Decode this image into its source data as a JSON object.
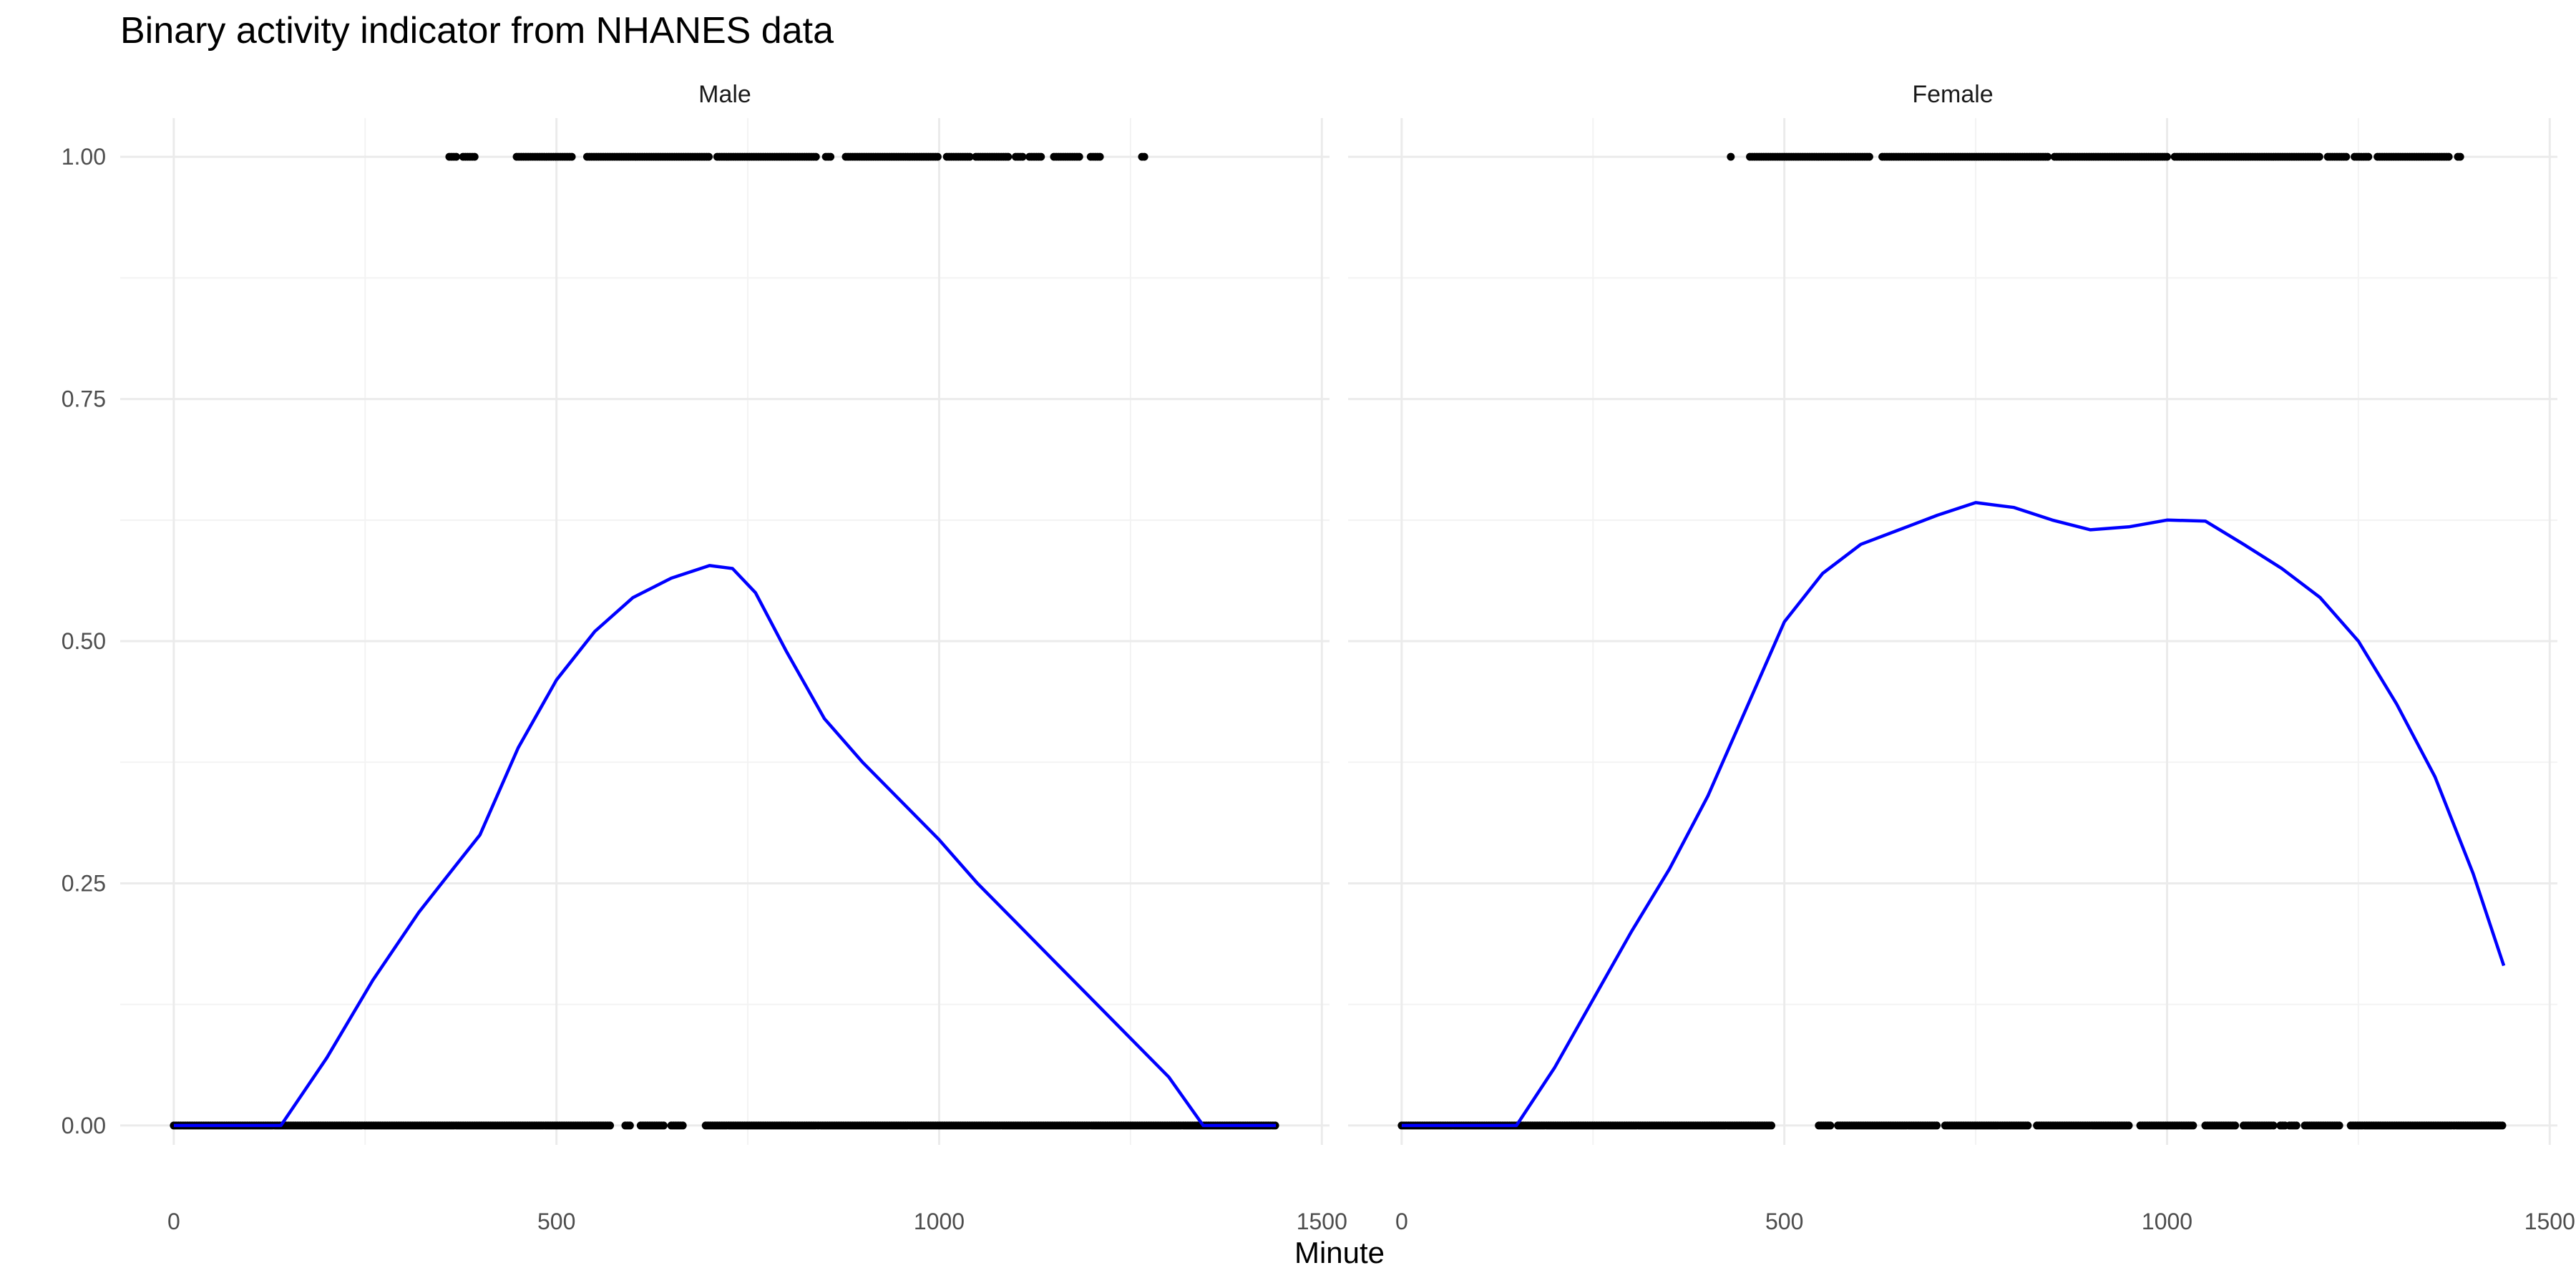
{
  "chart_data": {
    "type": "scatter",
    "title": "Binary activity indicator from NHANES data",
    "xlabel": "Minute",
    "ylabel": "",
    "xlim": [
      -70,
      1510
    ],
    "ylim": [
      -0.02,
      1.04
    ],
    "x_ticks": [
      0,
      500,
      1000,
      1500
    ],
    "x_tick_labels": [
      "0",
      "500",
      "1000",
      "1500"
    ],
    "y_ticks": [
      0,
      0.25,
      0.5,
      0.75,
      1
    ],
    "y_tick_labels": [
      "0.00",
      "0.25",
      "0.50",
      "0.75",
      "1.00"
    ],
    "grid": true,
    "line_color": "#0000ff",
    "point_color": "#000000",
    "panels": [
      {
        "name": "Male",
        "ones_segments": [
          [
            360,
            370
          ],
          [
            378,
            395
          ],
          [
            448,
            520
          ],
          [
            540,
            700
          ],
          [
            710,
            840
          ],
          [
            852,
            860
          ],
          [
            878,
            1000
          ],
          [
            1010,
            1040
          ],
          [
            1048,
            1090
          ],
          [
            1100,
            1110
          ],
          [
            1118,
            1135
          ],
          [
            1150,
            1185
          ],
          [
            1198,
            1210
          ],
          [
            1265,
            1268
          ]
        ],
        "zeros_segments": [
          [
            0,
            570
          ],
          [
            590,
            598
          ],
          [
            610,
            640
          ],
          [
            650,
            665
          ],
          [
            695,
            1440
          ]
        ],
        "smooth": [
          [
            0,
            0
          ],
          [
            140,
            0
          ],
          [
            200,
            0.07
          ],
          [
            260,
            0.15
          ],
          [
            320,
            0.22
          ],
          [
            360,
            0.26
          ],
          [
            400,
            0.3
          ],
          [
            450,
            0.39
          ],
          [
            500,
            0.46
          ],
          [
            550,
            0.51
          ],
          [
            600,
            0.545
          ],
          [
            650,
            0.565
          ],
          [
            700,
            0.578
          ],
          [
            730,
            0.575
          ],
          [
            760,
            0.55
          ],
          [
            800,
            0.49
          ],
          [
            850,
            0.42
          ],
          [
            900,
            0.375
          ],
          [
            950,
            0.335
          ],
          [
            1000,
            0.295
          ],
          [
            1050,
            0.25
          ],
          [
            1100,
            0.21
          ],
          [
            1150,
            0.17
          ],
          [
            1200,
            0.13
          ],
          [
            1250,
            0.09
          ],
          [
            1300,
            0.05
          ],
          [
            1345,
            0
          ],
          [
            1440,
            0
          ]
        ]
      },
      {
        "name": "Female",
        "ones_segments": [
          [
            430,
            432
          ],
          [
            455,
            612
          ],
          [
            628,
            845
          ],
          [
            853,
            1000
          ],
          [
            1010,
            1200
          ],
          [
            1210,
            1235
          ],
          [
            1245,
            1265
          ],
          [
            1275,
            1370
          ],
          [
            1380,
            1383
          ]
        ],
        "zeros_segments": [
          [
            0,
            485
          ],
          [
            545,
            560
          ],
          [
            570,
            700
          ],
          [
            710,
            820
          ],
          [
            830,
            950
          ],
          [
            965,
            1035
          ],
          [
            1050,
            1090
          ],
          [
            1100,
            1140
          ],
          [
            1148,
            1155
          ],
          [
            1160,
            1170
          ],
          [
            1180,
            1225
          ],
          [
            1240,
            1440
          ]
        ],
        "smooth": [
          [
            0,
            0
          ],
          [
            150,
            0
          ],
          [
            200,
            0.06
          ],
          [
            250,
            0.13
          ],
          [
            300,
            0.2
          ],
          [
            350,
            0.265
          ],
          [
            400,
            0.34
          ],
          [
            450,
            0.43
          ],
          [
            500,
            0.52
          ],
          [
            550,
            0.57
          ],
          [
            600,
            0.6
          ],
          [
            650,
            0.615
          ],
          [
            700,
            0.63
          ],
          [
            750,
            0.643
          ],
          [
            800,
            0.638
          ],
          [
            850,
            0.625
          ],
          [
            900,
            0.615
          ],
          [
            950,
            0.618
          ],
          [
            1000,
            0.625
          ],
          [
            1050,
            0.624
          ],
          [
            1100,
            0.6
          ],
          [
            1150,
            0.575
          ],
          [
            1200,
            0.545
          ],
          [
            1250,
            0.5
          ],
          [
            1300,
            0.435
          ],
          [
            1350,
            0.36
          ],
          [
            1400,
            0.26
          ],
          [
            1440,
            0.165
          ]
        ]
      }
    ]
  }
}
